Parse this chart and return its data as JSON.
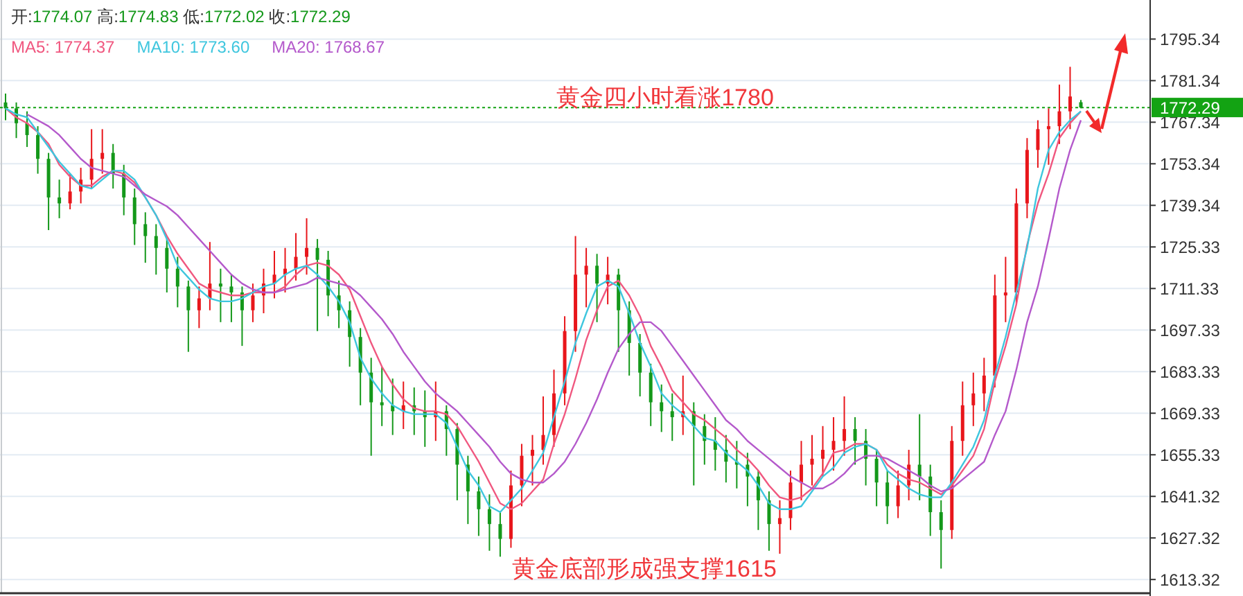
{
  "chart_data": {
    "type": "candlestick",
    "title": "开:1774.07  高:1774.83  低:1772.02  收:1772.29",
    "annotations": [
      "黄金四小时看涨1780",
      "黄金底部形成强支撑1615"
    ],
    "categories": [
      null,
      null,
      null,
      null,
      null,
      null,
      null,
      null,
      null,
      null,
      null,
      null,
      null,
      null,
      null,
      null,
      null,
      null,
      null,
      null,
      null,
      null,
      null,
      null,
      null,
      null,
      null,
      null,
      null,
      null,
      null,
      null,
      null,
      null,
      null,
      null,
      null,
      null,
      null,
      null,
      null,
      null,
      null,
      null,
      null,
      null,
      null,
      null,
      null,
      null,
      null,
      null,
      null,
      null,
      null,
      null,
      null,
      null,
      null,
      null,
      null,
      null,
      null,
      null,
      null,
      null,
      null,
      null,
      null,
      null,
      null,
      null,
      null,
      null,
      null,
      null,
      null,
      null,
      null,
      null,
      null,
      null,
      null,
      null,
      null,
      null,
      null,
      null,
      null,
      null,
      null,
      null,
      null,
      null,
      null,
      null,
      null,
      null,
      null,
      null,
      null
    ],
    "ohlc": [
      [
        1774,
        1777,
        1768,
        1772
      ],
      [
        1772,
        1774,
        1762,
        1767
      ],
      [
        1767,
        1771,
        1759,
        1763
      ],
      [
        1763,
        1766,
        1750,
        1755
      ],
      [
        1755,
        1757,
        1731,
        1742
      ],
      [
        1742,
        1748,
        1735,
        1740
      ],
      [
        1740,
        1750,
        1738,
        1744
      ],
      [
        1744,
        1752,
        1740,
        1748
      ],
      [
        1748,
        1765,
        1745,
        1755
      ],
      [
        1755,
        1765,
        1750,
        1757
      ],
      [
        1757,
        1760,
        1745,
        1750
      ],
      [
        1750,
        1753,
        1736,
        1742
      ],
      [
        1742,
        1745,
        1726,
        1733
      ],
      [
        1733,
        1737,
        1720,
        1729
      ],
      [
        1729,
        1733,
        1716,
        1725
      ],
      [
        1725,
        1728,
        1710,
        1718
      ],
      [
        1718,
        1722,
        1705,
        1712
      ],
      [
        1712,
        1714,
        1690,
        1704
      ],
      [
        1704,
        1712,
        1698,
        1708
      ],
      [
        1708,
        1727,
        1704,
        1713
      ],
      [
        1713,
        1718,
        1700,
        1712
      ],
      [
        1712,
        1716,
        1700,
        1710
      ],
      [
        1710,
        1712,
        1692,
        1704
      ],
      [
        1704,
        1713,
        1700,
        1709
      ],
      [
        1709,
        1718,
        1703,
        1713
      ],
      [
        1713,
        1724,
        1708,
        1716
      ],
      [
        1716,
        1725,
        1710,
        1718
      ],
      [
        1718,
        1730,
        1714,
        1722
      ],
      [
        1722,
        1735,
        1716,
        1725
      ],
      [
        1725,
        1728,
        1697,
        1721
      ],
      [
        1721,
        1724,
        1702,
        1709
      ],
      [
        1709,
        1714,
        1698,
        1704
      ],
      [
        1704,
        1707,
        1685,
        1695
      ],
      [
        1695,
        1698,
        1672,
        1683
      ],
      [
        1683,
        1688,
        1655,
        1673
      ],
      [
        1673,
        1685,
        1665,
        1672
      ],
      [
        1672,
        1681,
        1662,
        1670
      ],
      [
        1670,
        1680,
        1664,
        1672
      ],
      [
        1672,
        1678,
        1662,
        1670
      ],
      [
        1670,
        1677,
        1658,
        1668
      ],
      [
        1668,
        1680,
        1660,
        1670
      ],
      [
        1670,
        1672,
        1655,
        1664
      ],
      [
        1664,
        1666,
        1640,
        1652
      ],
      [
        1652,
        1655,
        1632,
        1643
      ],
      [
        1643,
        1648,
        1628,
        1637
      ],
      [
        1637,
        1642,
        1623,
        1632
      ],
      [
        1632,
        1636,
        1621,
        1627
      ],
      [
        1627,
        1650,
        1624,
        1645
      ],
      [
        1645,
        1659,
        1638,
        1655
      ],
      [
        1655,
        1662,
        1645,
        1657
      ],
      [
        1657,
        1675,
        1652,
        1662
      ],
      [
        1662,
        1684,
        1658,
        1676
      ],
      [
        1676,
        1702,
        1672,
        1697
      ],
      [
        1697,
        1729,
        1690,
        1716
      ],
      [
        1716,
        1725,
        1705,
        1719
      ],
      [
        1719,
        1723,
        1700,
        1713
      ],
      [
        1713,
        1722,
        1706,
        1716
      ],
      [
        1716,
        1718,
        1690,
        1704
      ],
      [
        1704,
        1707,
        1682,
        1693
      ],
      [
        1693,
        1696,
        1675,
        1683
      ],
      [
        1683,
        1686,
        1665,
        1673
      ],
      [
        1673,
        1679,
        1663,
        1670
      ],
      [
        1670,
        1676,
        1660,
        1668
      ],
      [
        1668,
        1682,
        1662,
        1670
      ],
      [
        1670,
        1673,
        1645,
        1665
      ],
      [
        1665,
        1669,
        1652,
        1660
      ],
      [
        1660,
        1668,
        1650,
        1657
      ],
      [
        1657,
        1662,
        1646,
        1653
      ],
      [
        1653,
        1660,
        1644,
        1652
      ],
      [
        1652,
        1656,
        1638,
        1648
      ],
      [
        1648,
        1650,
        1630,
        1640
      ],
      [
        1640,
        1643,
        1623,
        1632
      ],
      [
        1632,
        1640,
        1622,
        1634
      ],
      [
        1634,
        1650,
        1630,
        1646
      ],
      [
        1646,
        1660,
        1640,
        1652
      ],
      [
        1652,
        1662,
        1645,
        1654
      ],
      [
        1654,
        1665,
        1648,
        1657
      ],
      [
        1657,
        1668,
        1650,
        1660
      ],
      [
        1660,
        1675,
        1655,
        1664
      ],
      [
        1664,
        1668,
        1652,
        1660
      ],
      [
        1660,
        1664,
        1645,
        1654
      ],
      [
        1654,
        1657,
        1638,
        1646
      ],
      [
        1646,
        1650,
        1632,
        1638
      ],
      [
        1638,
        1650,
        1634,
        1645
      ],
      [
        1645,
        1657,
        1640,
        1652
      ],
      [
        1652,
        1669,
        1640,
        1648
      ],
      [
        1648,
        1652,
        1628,
        1636
      ],
      [
        1636,
        1640,
        1617,
        1630
      ],
      [
        1630,
        1665,
        1627,
        1660
      ],
      [
        1660,
        1680,
        1655,
        1672
      ],
      [
        1672,
        1683,
        1665,
        1676
      ],
      [
        1676,
        1688,
        1670,
        1682
      ],
      [
        1682,
        1716,
        1678,
        1709
      ],
      [
        1709,
        1722,
        1700,
        1710
      ],
      [
        1710,
        1745,
        1706,
        1740
      ],
      [
        1740,
        1762,
        1735,
        1758
      ],
      [
        1758,
        1768,
        1752,
        1765
      ],
      [
        1765,
        1772,
        1753,
        1766
      ],
      [
        1766,
        1780,
        1760,
        1771
      ],
      [
        1771,
        1786,
        1765,
        1776
      ],
      [
        1774.07,
        1774.83,
        1772.02,
        1772.29
      ]
    ],
    "colors": [
      "#14981a",
      "#14981a",
      "#14981a",
      "#14981a",
      "#14981a",
      "#14981a",
      "#e8161b",
      "#e8161b",
      "#e8161b",
      "#e8161b",
      "#14981a",
      "#14981a",
      "#14981a",
      "#14981a",
      "#14981a",
      "#14981a",
      "#14981a",
      "#14981a",
      "#e8161b",
      "#e8161b",
      "#14981a",
      "#14981a",
      "#14981a",
      "#e8161b",
      "#e8161b",
      "#e8161b",
      "#e8161b",
      "#e8161b",
      "#e8161b",
      "#14981a",
      "#14981a",
      "#14981a",
      "#14981a",
      "#14981a",
      "#14981a",
      "#14981a",
      "#14981a",
      "#e8161b",
      "#14981a",
      "#14981a",
      "#e8161b",
      "#14981a",
      "#14981a",
      "#14981a",
      "#14981a",
      "#14981a",
      "#14981a",
      "#e8161b",
      "#e8161b",
      "#e8161b",
      "#e8161b",
      "#e8161b",
      "#e8161b",
      "#e8161b",
      "#e8161b",
      "#14981a",
      "#e8161b",
      "#14981a",
      "#14981a",
      "#14981a",
      "#14981a",
      "#14981a",
      "#14981a",
      "#e8161b",
      "#14981a",
      "#14981a",
      "#14981a",
      "#14981a",
      "#14981a",
      "#14981a",
      "#14981a",
      "#14981a",
      "#e8161b",
      "#e8161b",
      "#e8161b",
      "#e8161b",
      "#e8161b",
      "#e8161b",
      "#e8161b",
      "#14981a",
      "#14981a",
      "#14981a",
      "#14981a",
      "#e8161b",
      "#e8161b",
      "#14981a",
      "#14981a",
      "#14981a",
      "#e8161b",
      "#e8161b",
      "#e8161b",
      "#e8161b",
      "#e8161b",
      "#e8161b",
      "#e8161b",
      "#e8161b",
      "#e8161b",
      "#e8161b",
      "#e8161b",
      "#e8161b",
      "#14981a"
    ],
    "series": [
      {
        "name": "MA5: 1774.37",
        "type": "line",
        "color": "#f0577f",
        "values": [
          1772,
          1769,
          1767,
          1764,
          1760,
          1753,
          1749,
          1746,
          1746,
          1749,
          1751,
          1750,
          1747,
          1742,
          1736,
          1729,
          1723,
          1718,
          1713,
          1711,
          1710,
          1709,
          1709,
          1710,
          1710,
          1710,
          1712,
          1716,
          1719,
          1720,
          1719,
          1716,
          1711,
          1702,
          1693,
          1685,
          1679,
          1674,
          1671,
          1670,
          1670,
          1669,
          1665,
          1659,
          1653,
          1646,
          1639,
          1637,
          1639,
          1643,
          1647,
          1659,
          1669,
          1681,
          1694,
          1704,
          1712,
          1714,
          1709,
          1702,
          1692,
          1685,
          1677,
          1673,
          1669,
          1667,
          1664,
          1661,
          1657,
          1654,
          1650,
          1645,
          1641,
          1640,
          1641,
          1644,
          1649,
          1656,
          1657,
          1659,
          1659,
          1657,
          1652,
          1649,
          1647,
          1646,
          1644,
          1642,
          1645,
          1650,
          1655,
          1664,
          1680,
          1692,
          1706,
          1726,
          1740,
          1750,
          1762,
          1767,
          1771
        ]
      },
      {
        "name": "MA10: 1773.60",
        "type": "line",
        "color": "#3ec6de",
        "values": [
          1772,
          1770,
          1769,
          1764,
          1759,
          1754,
          1750,
          1746,
          1745,
          1748,
          1751,
          1751,
          1748,
          1742,
          1736,
          1728,
          1719,
          1715,
          1711,
          1708,
          1707,
          1707,
          1708,
          1710,
          1712,
          1713,
          1716,
          1718,
          1719,
          1716,
          1712,
          1707,
          1700,
          1688,
          1681,
          1676,
          1672,
          1670,
          1669,
          1669,
          1669,
          1666,
          1658,
          1650,
          1645,
          1638,
          1636,
          1640,
          1644,
          1650,
          1656,
          1668,
          1680,
          1693,
          1703,
          1712,
          1714,
          1712,
          1703,
          1693,
          1685,
          1676,
          1672,
          1669,
          1665,
          1661,
          1660,
          1656,
          1653,
          1650,
          1645,
          1639,
          1637,
          1637,
          1638,
          1643,
          1648,
          1651,
          1656,
          1658,
          1659,
          1657,
          1650,
          1647,
          1644,
          1642,
          1641,
          1641,
          1646,
          1652,
          1658,
          1667,
          1682,
          1695,
          1710,
          1725,
          1745,
          1758,
          1764,
          1768,
          1771
        ]
      },
      {
        "name": "MA20: 1768.67",
        "type": "line",
        "color": "#b459cb",
        "values": [
          null,
          null,
          1770,
          1768,
          1766,
          1763,
          1759,
          1755,
          1752,
          1751,
          1750,
          1749,
          1746,
          1743,
          1741,
          1739,
          1736,
          1732,
          1728,
          1724,
          1720,
          1716,
          1713,
          1711,
          1710,
          1710,
          1711,
          1712,
          1713,
          1715,
          1714,
          1713,
          1712,
          1709,
          1705,
          1701,
          1696,
          1690,
          1685,
          1680,
          1676,
          1673,
          1670,
          1666,
          1662,
          1658,
          1653,
          1649,
          1647,
          1646,
          1646,
          1649,
          1653,
          1659,
          1666,
          1674,
          1683,
          1691,
          1696,
          1700,
          1700,
          1697,
          1692,
          1687,
          1682,
          1677,
          1672,
          1667,
          1664,
          1660,
          1657,
          1654,
          1651,
          1648,
          1646,
          1644,
          1644,
          1646,
          1649,
          1653,
          1655,
          1655,
          1654,
          1652,
          1650,
          1648,
          1645,
          1643,
          1644,
          1647,
          1650,
          1653,
          1662,
          1670,
          1684,
          1700,
          1712,
          1728,
          1745,
          1758,
          1768
        ]
      }
    ],
    "ylim": [
      1608.7,
      1808.5
    ],
    "yticks": [
      1613.32,
      1627.32,
      1641.32,
      1655.33,
      1669.33,
      1683.33,
      1697.33,
      1711.33,
      1725.33,
      1739.34,
      1753.34,
      1767.34,
      1781.34,
      1795.34
    ],
    "ref_lines": [
      {
        "axis": "y",
        "value": 1772.29,
        "label": "1772.29",
        "color": "#13a313",
        "line_style": "dotted"
      }
    ],
    "grid": "y",
    "legend": "top"
  }
}
